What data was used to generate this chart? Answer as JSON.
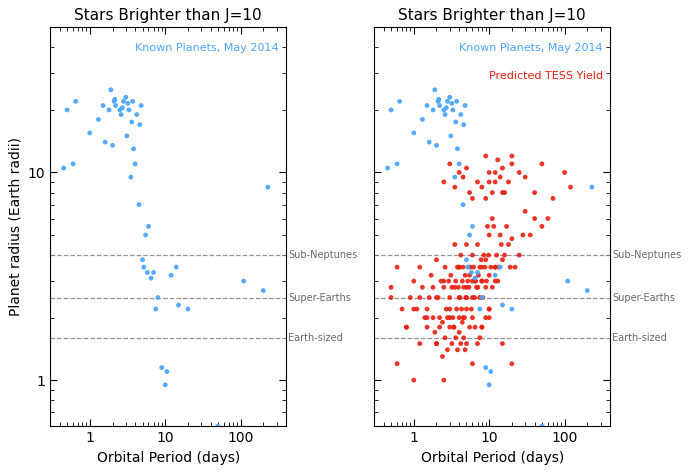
{
  "title": "Stars Brighter than J=10",
  "xlabel": "Orbital Period (days)",
  "ylabel": "Planet radius (Earth radii)",
  "xlim": [
    0.3,
    400
  ],
  "ylim": [
    0.6,
    50
  ],
  "dashed_lines": [
    4.0,
    2.5,
    1.6
  ],
  "dashed_labels": [
    "Sub-Neptunes",
    "Super-Earths",
    "Earth-sized"
  ],
  "blue_label": "Known Planets, May 2014",
  "red_label": "Predicted TESS Yield",
  "blue_color": "#4da6ff",
  "red_color": "#e82010",
  "marker_size": 12,
  "known_period": [
    0.45,
    0.5,
    0.6,
    0.65,
    1.0,
    1.3,
    1.5,
    1.6,
    1.8,
    1.9,
    2.0,
    2.1,
    2.15,
    2.2,
    2.5,
    2.6,
    2.7,
    2.8,
    3.0,
    3.1,
    3.2,
    3.3,
    3.5,
    3.6,
    3.7,
    3.8,
    4.0,
    4.2,
    4.5,
    4.6,
    4.8,
    5.0,
    5.2,
    5.5,
    5.8,
    6.0,
    6.5,
    7.0,
    7.5,
    8.0,
    9.0,
    10.0,
    10.5,
    12.0,
    14.0,
    15.0,
    20.0,
    50.0,
    110.0,
    200.0,
    230.0
  ],
  "known_radius": [
    10.5,
    20.0,
    11.0,
    22.0,
    15.5,
    18.0,
    21.0,
    14.0,
    20.0,
    25.0,
    13.5,
    22.0,
    22.5,
    21.0,
    20.0,
    19.0,
    20.5,
    22.0,
    23.0,
    15.0,
    21.5,
    20.0,
    9.5,
    17.5,
    22.0,
    13.0,
    11.0,
    19.0,
    7.0,
    17.0,
    21.0,
    3.8,
    3.5,
    5.0,
    3.3,
    5.5,
    3.1,
    3.3,
    2.2,
    2.5,
    1.15,
    0.95,
    1.1,
    3.2,
    3.5,
    2.3,
    2.2,
    0.6,
    3.0,
    2.7,
    8.5
  ],
  "tess_period": [
    0.5,
    0.6,
    0.7,
    0.8,
    0.9,
    1.0,
    1.1,
    1.2,
    1.3,
    1.4,
    1.5,
    1.6,
    1.7,
    1.8,
    1.9,
    2.0,
    2.1,
    2.2,
    2.3,
    2.4,
    2.5,
    2.6,
    2.7,
    2.8,
    2.9,
    3.0,
    3.1,
    3.2,
    3.3,
    3.4,
    3.5,
    3.6,
    3.7,
    3.8,
    3.9,
    4.0,
    4.1,
    4.2,
    4.3,
    4.4,
    4.5,
    4.6,
    4.7,
    4.8,
    4.9,
    5.0,
    5.2,
    5.4,
    5.6,
    5.8,
    6.0,
    6.2,
    6.4,
    6.6,
    6.8,
    7.0,
    7.2,
    7.5,
    7.8,
    8.0,
    8.2,
    8.5,
    8.8,
    9.0,
    9.2,
    9.5,
    9.8,
    10.0,
    10.5,
    11.0,
    11.5,
    12.0,
    12.5,
    13.0,
    13.5,
    14.0,
    14.5,
    15.0,
    16.0,
    17.0,
    18.0,
    19.0,
    20.0,
    22.0,
    25.0,
    28.0,
    30.0,
    35.0,
    40.0,
    50.0,
    60.0,
    70.0,
    100.0,
    120.0,
    2.0,
    2.2,
    2.4,
    2.6,
    2.8,
    3.0,
    3.2,
    3.4,
    3.6,
    3.8,
    4.0,
    4.2,
    4.4,
    4.6,
    4.8,
    5.0,
    5.5,
    6.0,
    6.5,
    7.0,
    7.5,
    8.0,
    9.0,
    10.0,
    4.0,
    4.5,
    5.0,
    5.5,
    6.0,
    6.5,
    7.0,
    7.5,
    8.0,
    9.0,
    10.0,
    11.0,
    12.0,
    2.5,
    3.0,
    3.5,
    4.0,
    4.5,
    5.0,
    5.5,
    6.0,
    7.0,
    8.0,
    9.0,
    10.0,
    12.0,
    15.0,
    20.0,
    9.0,
    10.0,
    11.0,
    12.0,
    13.0,
    14.0,
    15.0,
    16.0,
    18.0,
    20.0,
    25.0,
    30.0,
    40.0,
    50.0,
    1.0,
    1.2,
    1.5,
    1.8,
    2.0,
    2.5,
    3.0,
    3.5,
    4.0,
    5.0,
    6.0,
    7.0,
    8.0,
    10.0,
    12.0,
    0.5,
    0.6,
    0.8,
    1.0,
    1.2,
    1.5,
    2.0,
    2.5,
    3.0,
    4.0,
    5.0,
    6.0,
    8.0,
    10.0,
    15.0,
    20.0
  ],
  "tess_radius": [
    2.8,
    3.5,
    2.2,
    1.8,
    2.5,
    3.0,
    2.2,
    3.5,
    2.8,
    2.0,
    1.8,
    2.5,
    3.2,
    2.0,
    1.7,
    3.8,
    2.5,
    2.0,
    3.0,
    1.9,
    2.8,
    3.5,
    2.2,
    2.0,
    3.0,
    2.5,
    3.2,
    2.8,
    2.0,
    1.8,
    4.5,
    3.0,
    2.2,
    3.5,
    2.8,
    3.5,
    2.5,
    4.0,
    2.2,
    3.0,
    3.5,
    2.8,
    2.0,
    3.2,
    2.5,
    4.5,
    3.0,
    2.8,
    3.5,
    2.2,
    4.0,
    3.5,
    2.5,
    3.0,
    2.8,
    4.5,
    3.2,
    2.5,
    3.8,
    3.0,
    2.5,
    4.0,
    3.5,
    2.8,
    3.0,
    5.5,
    4.0,
    5.0,
    3.5,
    6.0,
    5.5,
    3.5,
    4.0,
    3.0,
    3.5,
    5.0,
    4.5,
    3.8,
    4.0,
    5.5,
    4.5,
    3.5,
    4.8,
    3.5,
    4.0,
    5.0,
    6.5,
    5.0,
    6.0,
    5.5,
    6.0,
    7.5,
    10.0,
    8.5,
    1.5,
    1.8,
    1.3,
    1.6,
    1.4,
    2.0,
    1.5,
    1.8,
    1.6,
    1.4,
    1.7,
    1.5,
    1.9,
    1.6,
    1.4,
    2.2,
    1.8,
    2.0,
    1.8,
    1.5,
    1.6,
    1.8,
    2.0,
    2.2,
    2.5,
    2.0,
    2.8,
    3.2,
    2.5,
    3.0,
    2.8,
    3.5,
    3.0,
    3.8,
    3.2,
    2.8,
    3.5,
    9.0,
    11.0,
    8.5,
    10.0,
    9.5,
    10.5,
    8.0,
    7.5,
    9.0,
    8.5,
    12.0,
    10.0,
    9.0,
    8.0,
    11.0,
    7.5,
    9.0,
    8.0,
    10.0,
    11.5,
    9.5,
    10.5,
    8.0,
    9.0,
    12.0,
    10.0,
    9.5,
    8.0,
    11.0,
    2.2,
    2.5,
    2.0,
    2.8,
    2.5,
    3.0,
    2.2,
    2.8,
    3.5,
    2.5,
    3.0,
    2.8,
    3.5,
    2.2,
    3.0,
    2.5,
    1.2,
    1.8,
    1.0,
    1.5,
    2.2,
    1.5,
    1.0,
    1.8,
    2.0,
    1.5,
    1.2,
    1.8,
    2.0,
    1.5,
    1.2
  ]
}
